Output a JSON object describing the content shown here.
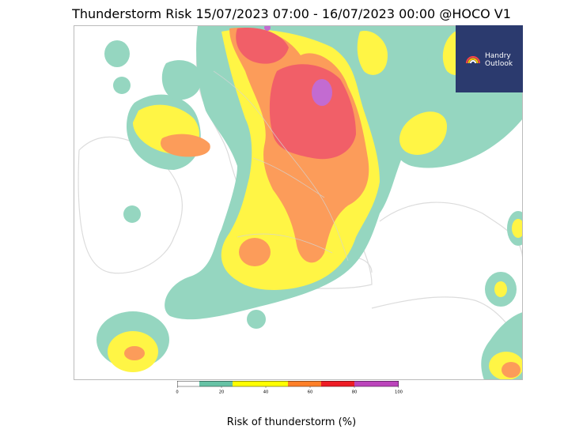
{
  "title": "Thunderstorm Risk 15/07/2023 07:00 - 16/07/2023 00:00 @HOCO V1",
  "logo": {
    "line1": "Handry",
    "line2": "Outlook",
    "icon": "rainbow-icon"
  },
  "colorbar": {
    "label": "Risk of thunderstorm (%)",
    "min": 0,
    "max": 100,
    "ticks": [
      "0",
      "20",
      "40",
      "60",
      "80",
      "100"
    ],
    "tick_values": [
      0,
      20,
      40,
      60,
      80,
      100
    ],
    "bins": [
      {
        "from": 0,
        "to": 10,
        "color": "#ffffff"
      },
      {
        "from": 10,
        "to": 25,
        "color": "#66c2a5"
      },
      {
        "from": 25,
        "to": 50,
        "color": "#ffff00"
      },
      {
        "from": 50,
        "to": 65,
        "color": "#ff7f27"
      },
      {
        "from": 65,
        "to": 80,
        "color": "#ee1c25"
      },
      {
        "from": 80,
        "to": 100,
        "color": "#bb44bb"
      }
    ]
  },
  "map_colors": {
    "green": "#95d6c0",
    "yellow": "#fff545",
    "orange": "#fc9c5a",
    "red": "#f15f68",
    "purple": "#c36bd1"
  }
}
